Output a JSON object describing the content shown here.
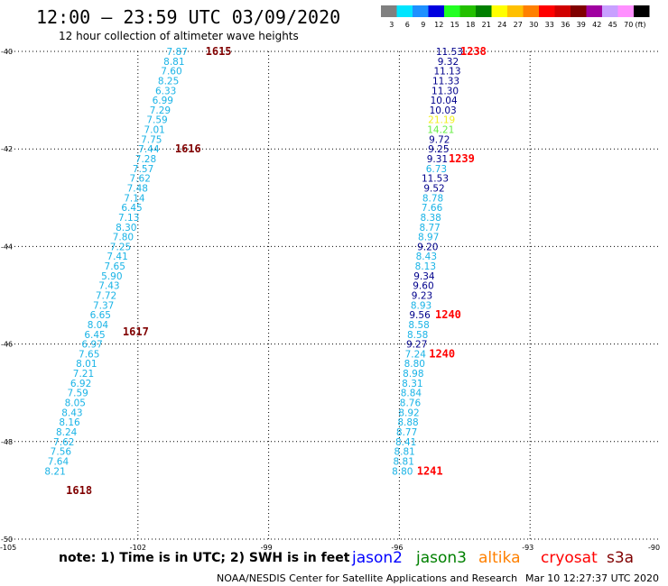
{
  "header": {
    "title": "12:00 – 23:59 UTC 03/09/2020",
    "subtitle": "12 hour collection of altimeter wave heights"
  },
  "legend": {
    "units": "(ft)",
    "bins": [
      {
        "label": "3",
        "color": "#808080"
      },
      {
        "label": "6",
        "color": "#00e5ff"
      },
      {
        "label": "9",
        "color": "#1e90ff"
      },
      {
        "label": "12",
        "color": "#0000e0"
      },
      {
        "label": "15",
        "color": "#22ff22"
      },
      {
        "label": "18",
        "color": "#22c000"
      },
      {
        "label": "21",
        "color": "#008000"
      },
      {
        "label": "24",
        "color": "#ffff00"
      },
      {
        "label": "27",
        "color": "#ffc000"
      },
      {
        "label": "30",
        "color": "#ff8000"
      },
      {
        "label": "33",
        "color": "#ff0000"
      },
      {
        "label": "36",
        "color": "#d00000"
      },
      {
        "label": "39",
        "color": "#800000"
      },
      {
        "label": "42",
        "color": "#a000a0"
      },
      {
        "label": "45",
        "color": "#c8a0ff"
      },
      {
        "label": "70",
        "color": "#ff90ff"
      },
      {
        "label": "",
        "color": "#000000"
      }
    ]
  },
  "footer": {
    "note": "note:  1) Time is in UTC;  2) SWH is in feet",
    "satellites": [
      {
        "label": "jason2",
        "color": "#0000ff"
      },
      {
        "label": "jason3",
        "color": "#008000"
      },
      {
        "label": "altika",
        "color": "#ff8000"
      },
      {
        "label": "cryosat",
        "color": "#ff0000"
      },
      {
        "label": "s3a",
        "color": "#800000"
      }
    ],
    "credit": "NOAA/NESDIS Center for Satellite Applications and Research",
    "timestamp": "Mar 10 12:27:37 UTC 2020"
  },
  "chart_data": {
    "type": "scatter",
    "xlim": [
      -105,
      -90
    ],
    "ylim": [
      -50,
      -40
    ],
    "x_ticks": [
      "-105",
      "-102",
      "-99",
      "-96",
      "-93",
      "-90"
    ],
    "y_ticks": [
      "-40",
      "-42",
      "-44",
      "-46",
      "-48",
      "-50"
    ],
    "grid": true,
    "colors": {
      "cyan": "#19b3e6",
      "navy": "#00008b",
      "light_blue": "#4db8ff",
      "yellow": "#f0f020",
      "green": "#66ee44",
      "time_red": "#ff0000",
      "time_maroon": "#800000"
    },
    "tracks": [
      {
        "name": "track-west",
        "points": [
          {
            "lon": -101.1,
            "lat": -40.0,
            "swh": "7.87",
            "c": "cyan"
          },
          {
            "lon": -101.17,
            "lat": -40.2,
            "swh": "8.81",
            "c": "cyan"
          },
          {
            "lon": -101.23,
            "lat": -40.4,
            "swh": "7.60",
            "c": "cyan"
          },
          {
            "lon": -101.3,
            "lat": -40.6,
            "swh": "8.25",
            "c": "cyan"
          },
          {
            "lon": -101.36,
            "lat": -40.8,
            "swh": "6.33",
            "c": "cyan"
          },
          {
            "lon": -101.43,
            "lat": -41.0,
            "swh": "6.99",
            "c": "cyan"
          },
          {
            "lon": -101.49,
            "lat": -41.2,
            "swh": "7.29",
            "c": "cyan"
          },
          {
            "lon": -101.56,
            "lat": -41.4,
            "swh": "7.59",
            "c": "cyan"
          },
          {
            "lon": -101.62,
            "lat": -41.6,
            "swh": "7.01",
            "c": "cyan"
          },
          {
            "lon": -101.69,
            "lat": -41.8,
            "swh": "7.75",
            "c": "cyan"
          },
          {
            "lon": -101.75,
            "lat": -42.0,
            "swh": "7.44",
            "c": "cyan"
          },
          {
            "lon": -101.82,
            "lat": -42.2,
            "swh": "7.28",
            "c": "cyan"
          },
          {
            "lon": -101.88,
            "lat": -42.4,
            "swh": "7.57",
            "c": "cyan"
          },
          {
            "lon": -101.95,
            "lat": -42.6,
            "swh": "7.62",
            "c": "cyan"
          },
          {
            "lon": -102.01,
            "lat": -42.8,
            "swh": "7.48",
            "c": "cyan"
          },
          {
            "lon": -102.08,
            "lat": -43.0,
            "swh": "7.14",
            "c": "cyan"
          },
          {
            "lon": -102.14,
            "lat": -43.2,
            "swh": "6.45",
            "c": "cyan"
          },
          {
            "lon": -102.21,
            "lat": -43.4,
            "swh": "7.13",
            "c": "cyan"
          },
          {
            "lon": -102.27,
            "lat": -43.6,
            "swh": "8.30",
            "c": "cyan"
          },
          {
            "lon": -102.34,
            "lat": -43.8,
            "swh": "7.80",
            "c": "cyan"
          },
          {
            "lon": -102.4,
            "lat": -44.0,
            "swh": "7.25",
            "c": "cyan"
          },
          {
            "lon": -102.47,
            "lat": -44.2,
            "swh": "7.41",
            "c": "cyan"
          },
          {
            "lon": -102.53,
            "lat": -44.4,
            "swh": "7.65",
            "c": "cyan"
          },
          {
            "lon": -102.6,
            "lat": -44.6,
            "swh": "5.90",
            "c": "cyan"
          },
          {
            "lon": -102.66,
            "lat": -44.8,
            "swh": "7.43",
            "c": "cyan"
          },
          {
            "lon": -102.73,
            "lat": -45.0,
            "swh": "7.72",
            "c": "cyan"
          },
          {
            "lon": -102.79,
            "lat": -45.2,
            "swh": "7.37",
            "c": "cyan"
          },
          {
            "lon": -102.86,
            "lat": -45.4,
            "swh": "6.65",
            "c": "cyan"
          },
          {
            "lon": -102.92,
            "lat": -45.6,
            "swh": "8.04",
            "c": "cyan"
          },
          {
            "lon": -102.99,
            "lat": -45.8,
            "swh": "6.45",
            "c": "cyan"
          },
          {
            "lon": -103.05,
            "lat": -46.0,
            "swh": "6.97",
            "c": "cyan"
          },
          {
            "lon": -103.12,
            "lat": -46.2,
            "swh": "7.65",
            "c": "cyan"
          },
          {
            "lon": -103.18,
            "lat": -46.4,
            "swh": "8.01",
            "c": "cyan"
          },
          {
            "lon": -103.25,
            "lat": -46.6,
            "swh": "7.21",
            "c": "cyan"
          },
          {
            "lon": -103.31,
            "lat": -46.8,
            "swh": "6.92",
            "c": "cyan"
          },
          {
            "lon": -103.38,
            "lat": -47.0,
            "swh": "7.59",
            "c": "cyan"
          },
          {
            "lon": -103.44,
            "lat": -47.2,
            "swh": "8.05",
            "c": "cyan"
          },
          {
            "lon": -103.51,
            "lat": -47.4,
            "swh": "8.43",
            "c": "cyan"
          },
          {
            "lon": -103.57,
            "lat": -47.6,
            "swh": "8.16",
            "c": "cyan"
          },
          {
            "lon": -103.64,
            "lat": -47.8,
            "swh": "8.24",
            "c": "cyan"
          },
          {
            "lon": -103.7,
            "lat": -48.0,
            "swh": "7.62",
            "c": "cyan"
          },
          {
            "lon": -103.77,
            "lat": -48.2,
            "swh": "7.56",
            "c": "cyan"
          },
          {
            "lon": -103.83,
            "lat": -48.4,
            "swh": "7.64",
            "c": "cyan"
          },
          {
            "lon": -103.9,
            "lat": -48.6,
            "swh": "8.21",
            "c": "cyan"
          }
        ],
        "times": [
          {
            "label": "1615",
            "lon": -100.15,
            "lat": -40.0,
            "c": "time_maroon"
          },
          {
            "label": "1616",
            "lon": -100.85,
            "lat": -42.0,
            "c": "time_maroon"
          },
          {
            "label": "1617",
            "lon": -102.05,
            "lat": -45.75,
            "c": "time_maroon"
          },
          {
            "label": "1618",
            "lon": -103.35,
            "lat": -49.0,
            "c": "time_maroon"
          }
        ]
      },
      {
        "name": "track-east",
        "points": [
          {
            "lon": -94.85,
            "lat": -40.0,
            "swh": "11.53",
            "c": "navy"
          },
          {
            "lon": -94.88,
            "lat": -40.2,
            "swh": "9.32",
            "c": "navy"
          },
          {
            "lon": -94.9,
            "lat": -40.4,
            "swh": "11.13",
            "c": "navy"
          },
          {
            "lon": -94.93,
            "lat": -40.6,
            "swh": "11.33",
            "c": "navy"
          },
          {
            "lon": -94.95,
            "lat": -40.8,
            "swh": "11.30",
            "c": "navy"
          },
          {
            "lon": -94.98,
            "lat": -41.0,
            "swh": "10.04",
            "c": "navy"
          },
          {
            "lon": -95.0,
            "lat": -41.2,
            "swh": "10.03",
            "c": "navy"
          },
          {
            "lon": -95.03,
            "lat": -41.4,
            "swh": "21.19",
            "c": "yellow"
          },
          {
            "lon": -95.05,
            "lat": -41.6,
            "swh": "14.21",
            "c": "green"
          },
          {
            "lon": -95.08,
            "lat": -41.8,
            "swh": "9.72",
            "c": "navy"
          },
          {
            "lon": -95.1,
            "lat": -42.0,
            "swh": "9.25",
            "c": "navy"
          },
          {
            "lon": -95.13,
            "lat": -42.2,
            "swh": "9.31",
            "c": "navy"
          },
          {
            "lon": -95.15,
            "lat": -42.4,
            "swh": "6.73",
            "c": "cyan"
          },
          {
            "lon": -95.18,
            "lat": -42.6,
            "swh": "11.53",
            "c": "navy"
          },
          {
            "lon": -95.2,
            "lat": -42.8,
            "swh": "9.52",
            "c": "navy"
          },
          {
            "lon": -95.23,
            "lat": -43.0,
            "swh": "8.78",
            "c": "cyan"
          },
          {
            "lon": -95.25,
            "lat": -43.2,
            "swh": "7.66",
            "c": "cyan"
          },
          {
            "lon": -95.28,
            "lat": -43.4,
            "swh": "8.38",
            "c": "cyan"
          },
          {
            "lon": -95.3,
            "lat": -43.6,
            "swh": "8.77",
            "c": "cyan"
          },
          {
            "lon": -95.33,
            "lat": -43.8,
            "swh": "8.97",
            "c": "cyan"
          },
          {
            "lon": -95.35,
            "lat": -44.0,
            "swh": "9.20",
            "c": "navy"
          },
          {
            "lon": -95.38,
            "lat": -44.2,
            "swh": "8.43",
            "c": "cyan"
          },
          {
            "lon": -95.4,
            "lat": -44.4,
            "swh": "8.13",
            "c": "cyan"
          },
          {
            "lon": -95.43,
            "lat": -44.6,
            "swh": "9.34",
            "c": "navy"
          },
          {
            "lon": -95.45,
            "lat": -44.8,
            "swh": "9.60",
            "c": "navy"
          },
          {
            "lon": -95.48,
            "lat": -45.0,
            "swh": "9.23",
            "c": "navy"
          },
          {
            "lon": -95.5,
            "lat": -45.2,
            "swh": "8.93",
            "c": "cyan"
          },
          {
            "lon": -95.53,
            "lat": -45.4,
            "swh": "9.56",
            "c": "navy"
          },
          {
            "lon": -95.55,
            "lat": -45.6,
            "swh": "8.58",
            "c": "cyan"
          },
          {
            "lon": -95.58,
            "lat": -45.8,
            "swh": "8.58",
            "c": "cyan"
          },
          {
            "lon": -95.6,
            "lat": -46.0,
            "swh": "9.27",
            "c": "navy"
          },
          {
            "lon": -95.63,
            "lat": -46.2,
            "swh": "7.24",
            "c": "cyan"
          },
          {
            "lon": -95.65,
            "lat": -46.4,
            "swh": "8.80",
            "c": "cyan"
          },
          {
            "lon": -95.68,
            "lat": -46.6,
            "swh": "8.98",
            "c": "cyan"
          },
          {
            "lon": -95.7,
            "lat": -46.8,
            "swh": "8.31",
            "c": "cyan"
          },
          {
            "lon": -95.73,
            "lat": -47.0,
            "swh": "8.84",
            "c": "cyan"
          },
          {
            "lon": -95.75,
            "lat": -47.2,
            "swh": "8.76",
            "c": "cyan"
          },
          {
            "lon": -95.78,
            "lat": -47.4,
            "swh": "8.92",
            "c": "cyan"
          },
          {
            "lon": -95.8,
            "lat": -47.6,
            "swh": "8.88",
            "c": "cyan"
          },
          {
            "lon": -95.83,
            "lat": -47.8,
            "swh": "8.77",
            "c": "cyan"
          },
          {
            "lon": -95.85,
            "lat": -48.0,
            "swh": "8.41",
            "c": "cyan"
          },
          {
            "lon": -95.88,
            "lat": -48.2,
            "swh": "8.81",
            "c": "cyan"
          },
          {
            "lon": -95.9,
            "lat": -48.4,
            "swh": "8.81",
            "c": "cyan"
          },
          {
            "lon": -95.93,
            "lat": -48.6,
            "swh": "8.80",
            "c": "cyan"
          }
        ],
        "times": [
          {
            "label": "1238",
            "lon": -94.3,
            "lat": -40.0,
            "c": "time_red"
          },
          {
            "label": "1239",
            "lon": -94.57,
            "lat": -42.2,
            "c": "time_red"
          },
          {
            "label": "1240",
            "lon": -94.88,
            "lat": -45.4,
            "c": "time_red"
          },
          {
            "label": "1240",
            "lon": -95.02,
            "lat": -46.2,
            "c": "time_red"
          },
          {
            "label": "1241",
            "lon": -95.3,
            "lat": -48.6,
            "c": "time_red"
          }
        ]
      }
    ]
  }
}
